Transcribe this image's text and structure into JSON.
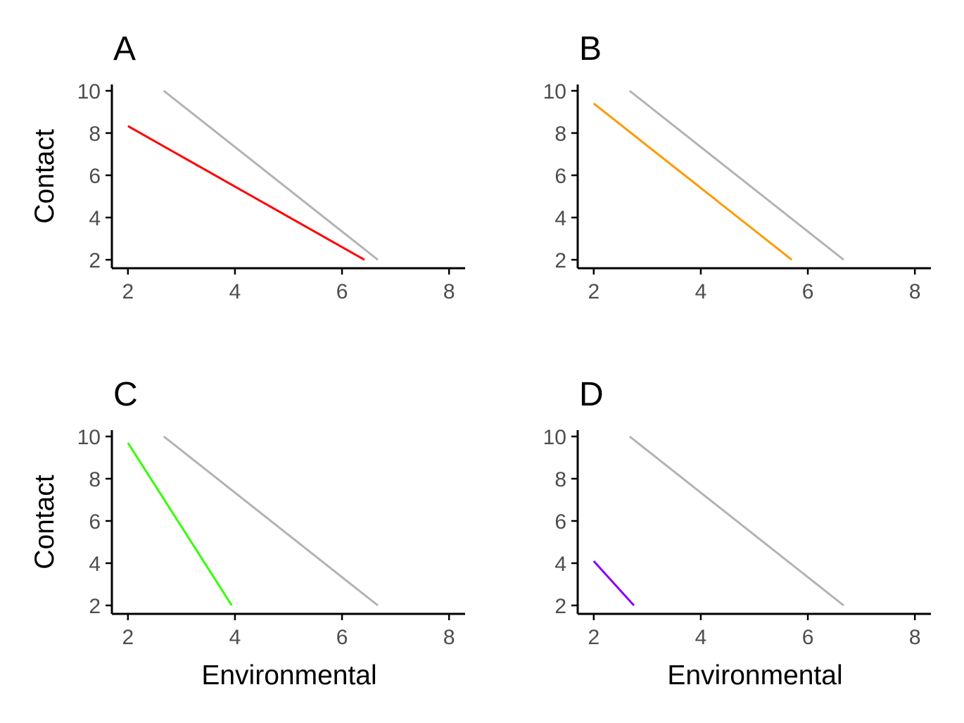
{
  "chart_data": [
    {
      "type": "line",
      "title": "A",
      "xlabel": "",
      "ylabel": "Contact",
      "xlim": [
        1.7,
        8.3
      ],
      "ylim": [
        1.6,
        10.3
      ],
      "xticks": [
        2,
        4,
        6,
        8
      ],
      "yticks": [
        2,
        4,
        6,
        8,
        10
      ],
      "grid": false,
      "series": [
        {
          "color": "#b3b3b3",
          "x": [
            2.67,
            6.67
          ],
          "y": [
            10,
            2
          ]
        },
        {
          "color": "#ff0000",
          "x": [
            2,
            6.42
          ],
          "y": [
            8.33,
            2
          ]
        }
      ]
    },
    {
      "type": "line",
      "title": "B",
      "xlabel": "",
      "ylabel": "",
      "xlim": [
        1.7,
        8.3
      ],
      "ylim": [
        1.6,
        10.3
      ],
      "xticks": [
        2,
        4,
        6,
        8
      ],
      "yticks": [
        2,
        4,
        6,
        8,
        10
      ],
      "grid": false,
      "series": [
        {
          "color": "#b3b3b3",
          "x": [
            2.67,
            6.67
          ],
          "y": [
            10,
            2
          ]
        },
        {
          "color": "#ff9900",
          "x": [
            2,
            5.7
          ],
          "y": [
            9.4,
            2
          ]
        }
      ]
    },
    {
      "type": "line",
      "title": "C",
      "xlabel": "Environmental",
      "ylabel": "Contact",
      "xlim": [
        1.7,
        8.3
      ],
      "ylim": [
        1.6,
        10.3
      ],
      "xticks": [
        2,
        4,
        6,
        8
      ],
      "yticks": [
        2,
        4,
        6,
        8,
        10
      ],
      "grid": false,
      "series": [
        {
          "color": "#b3b3b3",
          "x": [
            2.67,
            6.67
          ],
          "y": [
            10,
            2
          ]
        },
        {
          "color": "#33ff00",
          "x": [
            2,
            3.94
          ],
          "y": [
            9.7,
            2
          ]
        }
      ]
    },
    {
      "type": "line",
      "title": "D",
      "xlabel": "Environmental",
      "ylabel": "",
      "xlim": [
        1.7,
        8.3
      ],
      "ylim": [
        1.6,
        10.3
      ],
      "xticks": [
        2,
        4,
        6,
        8
      ],
      "yticks": [
        2,
        4,
        6,
        8,
        10
      ],
      "grid": false,
      "series": [
        {
          "color": "#b3b3b3",
          "x": [
            2.67,
            6.67
          ],
          "y": [
            10,
            2
          ]
        },
        {
          "color": "#8800ff",
          "x": [
            2,
            2.75
          ],
          "y": [
            4.1,
            2
          ]
        }
      ]
    }
  ]
}
